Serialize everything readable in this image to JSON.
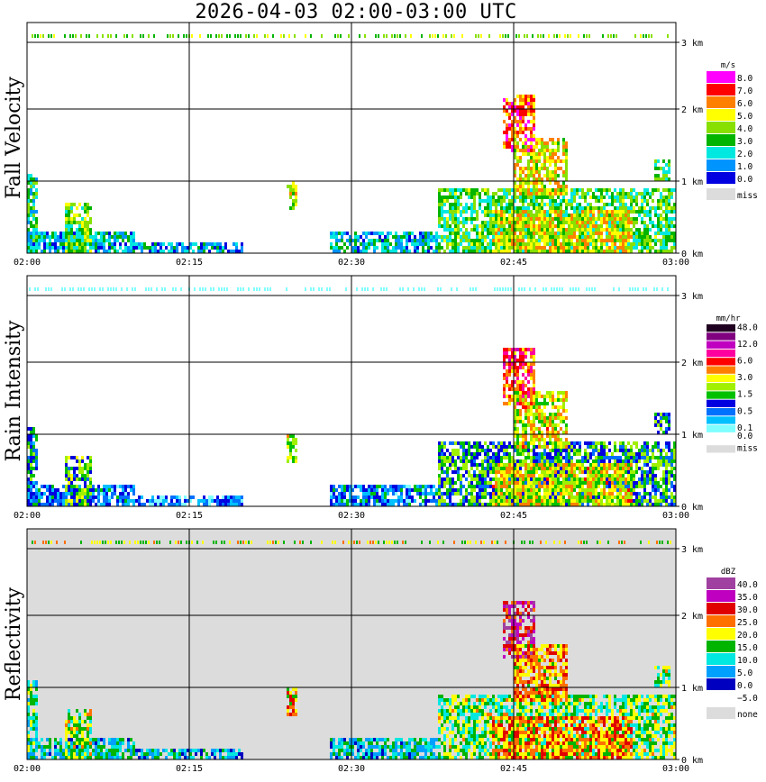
{
  "title": "2026-04-03  02:00-03:00 UTC",
  "x_ticks": [
    "02:00",
    "02:15",
    "02:30",
    "02:45",
    "03:00"
  ],
  "height_ticks": [
    "0 km",
    "1 km",
    "2 km",
    "3 km"
  ],
  "colors": {
    "background": "#ffffff",
    "missing": "#dcdcdc",
    "grid": "#000000"
  },
  "chart_data": [
    {
      "type": "heatmap",
      "ylabel": "Fall Velocity",
      "unit": "m/s",
      "xlim": [
        "02:00",
        "03:00"
      ],
      "ylim_km": [
        0,
        3.2
      ],
      "grid": true,
      "legend_position": "right",
      "legend": [
        {
          "label": "8.0",
          "color": "#ff00ff"
        },
        {
          "label": "7.0",
          "color": "#ff0000"
        },
        {
          "label": "6.0",
          "color": "#ff8000"
        },
        {
          "label": "5.0",
          "color": "#ffff00"
        },
        {
          "label": "4.0",
          "color": "#88e000"
        },
        {
          "label": "3.0",
          "color": "#00b400"
        },
        {
          "label": "2.0",
          "color": "#00e8e0"
        },
        {
          "label": "1.0",
          "color": "#0094ff"
        },
        {
          "label": "0.0",
          "color": "#0000e0"
        },
        {
          "label": "miss",
          "color": "#dcdcdc"
        }
      ]
    },
    {
      "type": "heatmap",
      "ylabel": "Rain Intensity",
      "unit": "mm/hr",
      "xlim": [
        "02:00",
        "03:00"
      ],
      "ylim_km": [
        0,
        3.2
      ],
      "grid": true,
      "legend_position": "right",
      "legend": [
        {
          "label": "48.0",
          "color": "#200020"
        },
        {
          "label": "",
          "color": "#800080"
        },
        {
          "label": "12.0",
          "color": "#c000c0"
        },
        {
          "label": "",
          "color": "#ff00a0"
        },
        {
          "label": "6.0",
          "color": "#ff0000"
        },
        {
          "label": "",
          "color": "#ff8000"
        },
        {
          "label": "3.0",
          "color": "#ffff00"
        },
        {
          "label": "",
          "color": "#a0f000"
        },
        {
          "label": "1.5",
          "color": "#00c000"
        },
        {
          "label": "",
          "color": "#0000e0"
        },
        {
          "label": "0.5",
          "color": "#0070ff"
        },
        {
          "label": "",
          "color": "#00c0ff"
        },
        {
          "label": "0.1",
          "color": "#80ffff"
        },
        {
          "label": "0.0",
          "color": "#ffffff"
        },
        {
          "label": "miss",
          "color": "#dcdcdc"
        }
      ]
    },
    {
      "type": "heatmap",
      "ylabel": "Reflectivity",
      "unit": "dBZ",
      "xlim": [
        "02:00",
        "03:00"
      ],
      "ylim_km": [
        0,
        3.2
      ],
      "grid": true,
      "legend_position": "right",
      "legend": [
        {
          "label": "40.0",
          "color": "#a040a0"
        },
        {
          "label": "35.0",
          "color": "#c000c0"
        },
        {
          "label": "30.0",
          "color": "#e00000"
        },
        {
          "label": "25.0",
          "color": "#ff7000"
        },
        {
          "label": "20.0",
          "color": "#ffff00"
        },
        {
          "label": "15.0",
          "color": "#00b400"
        },
        {
          "label": "10.0",
          "color": "#00e8e0"
        },
        {
          "label": "5.0",
          "color": "#00a0ff"
        },
        {
          "label": "0.0",
          "color": "#0000c0"
        },
        {
          "label": "−5.0",
          "color": "#ffffff"
        },
        {
          "label": "none",
          "color": "#dcdcdc"
        }
      ]
    }
  ]
}
